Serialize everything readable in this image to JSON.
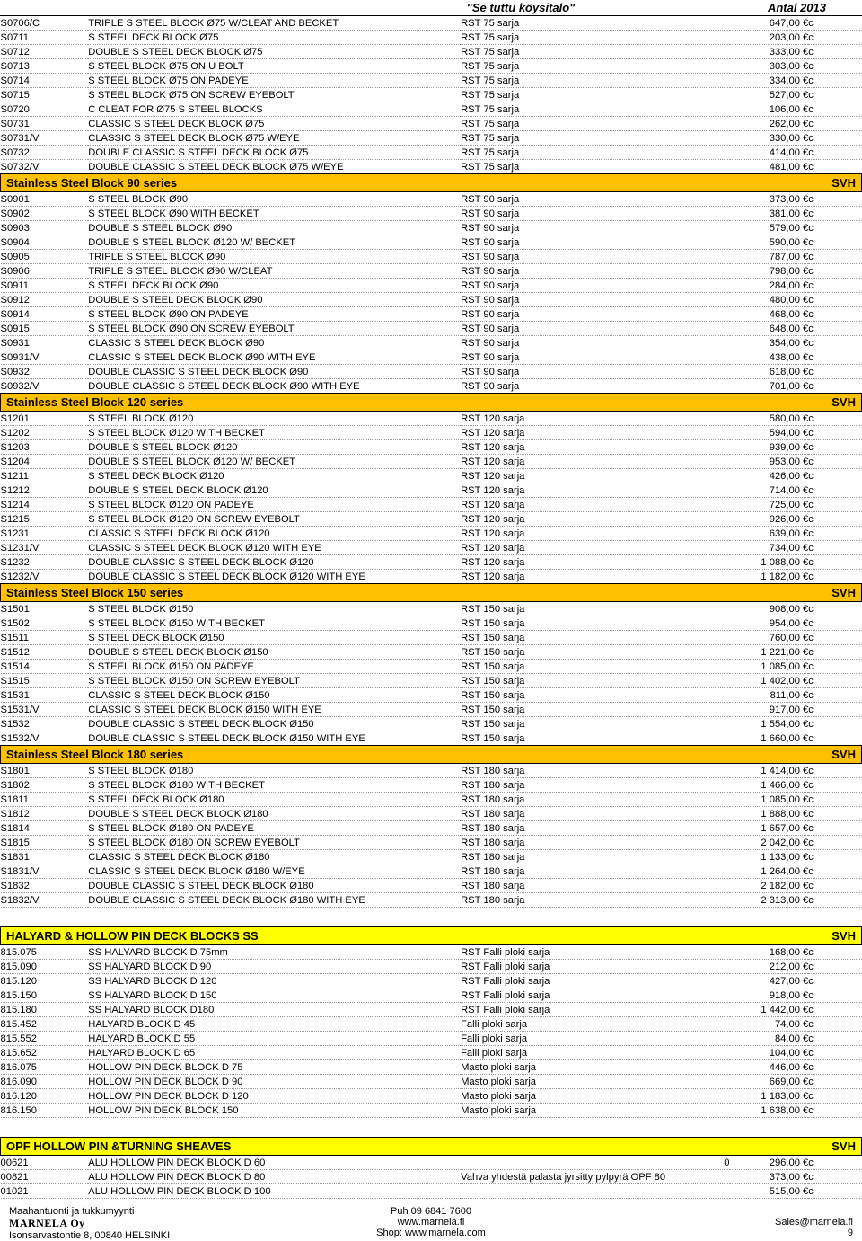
{
  "header": {
    "title": "\"Se tuttu köysitalo\"",
    "antal": "Antal  2013"
  },
  "currency": "c",
  "sections": [
    {
      "type": "rows",
      "rows": [
        {
          "code": "S0706/C",
          "desc": "TRIPLE S STEEL BLOCK Ø75 W/CLEAT AND BECKET",
          "series": "RST 75 sarja",
          "qty": "",
          "price": "647,00 €"
        },
        {
          "code": "S0711",
          "desc": "S STEEL DECK BLOCK Ø75",
          "series": "RST 75 sarja",
          "qty": "",
          "price": "203,00 €"
        },
        {
          "code": "S0712",
          "desc": "DOUBLE S STEEL DECK BLOCK Ø75",
          "series": "RST 75 sarja",
          "qty": "",
          "price": "333,00 €"
        },
        {
          "code": "S0713",
          "desc": "S STEEL BLOCK Ø75 ON U BOLT",
          "series": "RST 75 sarja",
          "qty": "",
          "price": "303,00 €"
        },
        {
          "code": "S0714",
          "desc": "S STEEL BLOCK Ø75 ON PADEYE",
          "series": "RST 75 sarja",
          "qty": "",
          "price": "334,00 €"
        },
        {
          "code": "S0715",
          "desc": "S STEEL BLOCK Ø75 ON SCREW EYEBOLT",
          "series": "RST 75 sarja",
          "qty": "",
          "price": "527,00 €"
        },
        {
          "code": "S0720",
          "desc": "C CLEAT FOR  Ø75 S STEEL BLOCKS",
          "series": "RST 75 sarja",
          "qty": "",
          "price": "106,00 €"
        },
        {
          "code": "S0731",
          "desc": "CLASSIC S STEEL DECK BLOCK Ø75",
          "series": "RST 75 sarja",
          "qty": "",
          "price": "262,00 €"
        },
        {
          "code": "S0731/V",
          "desc": "CLASSIC S STEEL DECK BLOCK Ø75 W/EYE",
          "series": "RST 75 sarja",
          "qty": "",
          "price": "330,00 €"
        },
        {
          "code": "S0732",
          "desc": "DOUBLE CLASSIC S STEEL DECK BLOCK Ø75",
          "series": "RST 75 sarja",
          "qty": "",
          "price": "414,00 €"
        },
        {
          "code": "S0732/V",
          "desc": "DOUBLE CLASSIC S STEEL DECK BLOCK Ø75 W/EYE",
          "series": "RST 75 sarja",
          "qty": "",
          "price": "481,00 €"
        }
      ]
    },
    {
      "type": "section",
      "color": "sec-yellow",
      "title": "Stainless Steel Block 90 series",
      "svh": "SVH"
    },
    {
      "type": "rows",
      "rows": [
        {
          "code": "S0901",
          "desc": "S STEEL BLOCK Ø90",
          "series": "RST 90 sarja",
          "qty": "",
          "price": "373,00 €"
        },
        {
          "code": "S0902",
          "desc": "S STEEL BLOCK Ø90 WITH  BECKET",
          "series": "RST 90 sarja",
          "qty": "",
          "price": "381,00 €"
        },
        {
          "code": "S0903",
          "desc": "DOUBLE S STEEL BLOCK Ø90",
          "series": "RST 90 sarja",
          "qty": "",
          "price": "579,00 €"
        },
        {
          "code": "S0904",
          "desc": "DOUBLE S STEEL BLOCK Ø120 W/ BECKET",
          "series": "RST 90 sarja",
          "qty": "",
          "price": "590,00 €"
        },
        {
          "code": "S0905",
          "desc": "TRIPLE S STEEL BLOCK Ø90",
          "series": "RST 90 sarja",
          "qty": "",
          "price": "787,00 €"
        },
        {
          "code": "S0906",
          "desc": "TRIPLE S STEEL BLOCK Ø90 W/CLEAT",
          "series": "RST 90 sarja",
          "qty": "",
          "price": "798,00 €"
        },
        {
          "code": "S0911",
          "desc": "S STEEL DECK BLOCK Ø90",
          "series": "RST 90 sarja",
          "qty": "",
          "price": "284,00 €"
        },
        {
          "code": "S0912",
          "desc": "DOUBLE S STEEL DECK BLOCK Ø90",
          "series": "RST 90 sarja",
          "qty": "",
          "price": "480,00 €"
        },
        {
          "code": "S0914",
          "desc": "S STEEL BLOCK Ø90 ON PADEYE",
          "series": "RST 90 sarja",
          "qty": "",
          "price": "468,00 €"
        },
        {
          "code": "S0915",
          "desc": "S STEEL BLOCK Ø90 ON SCREW EYEBOLT",
          "series": "RST 90 sarja",
          "qty": "",
          "price": "648,00 €"
        },
        {
          "code": "S0931",
          "desc": "CLASSIC S STEEL DECK BLOCK Ø90",
          "series": "RST 90 sarja",
          "qty": "",
          "price": "354,00 €"
        },
        {
          "code": "S0931/V",
          "desc": "CLASSIC S STEEL DECK BLOCK Ø90 WITH EYE",
          "series": "RST 90 sarja",
          "qty": "",
          "price": "438,00 €"
        },
        {
          "code": "S0932",
          "desc": "DOUBLE CLASSIC S STEEL DECK BLOCK Ø90",
          "series": "RST 90 sarja",
          "qty": "",
          "price": "618,00 €"
        },
        {
          "code": "S0932/V",
          "desc": "DOUBLE CLASSIC S STEEL DECK BLOCK Ø90 WITH EYE",
          "series": "RST 90 sarja",
          "qty": "",
          "price": "701,00 €"
        }
      ]
    },
    {
      "type": "section",
      "color": "sec-yellow",
      "title": "Stainless Steel Block 120 series",
      "svh": "SVH"
    },
    {
      "type": "rows",
      "rows": [
        {
          "code": "S1201",
          "desc": "S STEEL BLOCK Ø120",
          "series": "RST 120 sarja",
          "qty": "",
          "price": "580,00 €"
        },
        {
          "code": "S1202",
          "desc": "S STEEL BLOCK Ø120 WITH  BECKET",
          "series": "RST 120 sarja",
          "qty": "",
          "price": "594,00 €"
        },
        {
          "code": "S1203",
          "desc": "DOUBLE S STEEL BLOCK Ø120",
          "series": "RST 120 sarja",
          "qty": "",
          "price": "939,00 €"
        },
        {
          "code": "S1204",
          "desc": "DOUBLE S STEEL BLOCK Ø120 W/ BECKET",
          "series": "RST 120 sarja",
          "qty": "",
          "price": "953,00 €"
        },
        {
          "code": "S1211",
          "desc": "S STEEL DECK BLOCK Ø120",
          "series": "RST 120 sarja",
          "qty": "",
          "price": "426,00 €"
        },
        {
          "code": "S1212",
          "desc": "DOUBLE S STEEL DECK BLOCK Ø120",
          "series": "RST 120 sarja",
          "qty": "",
          "price": "714,00 €"
        },
        {
          "code": "S1214",
          "desc": "S STEEL BLOCK Ø120 ON PADEYE",
          "series": "RST 120 sarja",
          "qty": "",
          "price": "725,00 €"
        },
        {
          "code": "S1215",
          "desc": "S STEEL BLOCK Ø120 ON SCREW EYEBOLT",
          "series": "RST 120 sarja",
          "qty": "",
          "price": "926,00 €"
        },
        {
          "code": "S1231",
          "desc": "CLASSIC S STEEL DECK BLOCK Ø120",
          "series": "RST 120 sarja",
          "qty": "",
          "price": "639,00 €"
        },
        {
          "code": "S1231/V",
          "desc": "CLASSIC S STEEL DECK BLOCK Ø120 WITH EYE",
          "series": "RST 120 sarja",
          "qty": "",
          "price": "734,00 €"
        },
        {
          "code": "S1232",
          "desc": "DOUBLE CLASSIC S STEEL DECK BLOCK Ø120",
          "series": "RST 120 sarja",
          "qty": "",
          "price": "1 088,00 €"
        },
        {
          "code": "S1232/V",
          "desc": "DOUBLE CLASSIC S STEEL DECK BLOCK Ø120 WITH EYE",
          "series": "RST 120 sarja",
          "qty": "",
          "price": "1 182,00 €"
        }
      ]
    },
    {
      "type": "section",
      "color": "sec-yellow",
      "title": "Stainless Steel Block 150 series",
      "svh": "SVH"
    },
    {
      "type": "rows",
      "rows": [
        {
          "code": "S1501",
          "desc": "S STEEL BLOCK Ø150",
          "series": "RST 150 sarja",
          "qty": "",
          "price": "908,00 €"
        },
        {
          "code": "S1502",
          "desc": "S STEEL BLOCK Ø150 WITH  BECKET",
          "series": "RST 150 sarja",
          "qty": "",
          "price": "954,00 €"
        },
        {
          "code": "S1511",
          "desc": "S STEEL DECK BLOCK Ø150",
          "series": "RST 150 sarja",
          "qty": "",
          "price": "760,00 €"
        },
        {
          "code": "S1512",
          "desc": "DOUBLE S STEEL DECK BLOCK Ø150",
          "series": "RST 150 sarja",
          "qty": "",
          "price": "1 221,00 €"
        },
        {
          "code": "S1514",
          "desc": "S STEEL BLOCK Ø150 ON PADEYE",
          "series": "RST 150 sarja",
          "qty": "",
          "price": "1 085,00 €"
        },
        {
          "code": "S1515",
          "desc": "S STEEL BLOCK Ø150 ON SCREW EYEBOLT",
          "series": "RST 150 sarja",
          "qty": "",
          "price": "1 402,00 €"
        },
        {
          "code": "S1531",
          "desc": "CLASSIC S STEEL DECK BLOCK Ø150",
          "series": "RST 150 sarja",
          "qty": "",
          "price": "811,00 €"
        },
        {
          "code": "S1531/V",
          "desc": "CLASSIC S STEEL DECK BLOCK Ø150 WITH EYE",
          "series": "RST 150 sarja",
          "qty": "",
          "price": "917,00 €"
        },
        {
          "code": "S1532",
          "desc": "DOUBLE CLASSIC S STEEL DECK BLOCK Ø150",
          "series": "RST 150 sarja",
          "qty": "",
          "price": "1 554,00 €"
        },
        {
          "code": "S1532/V",
          "desc": "DOUBLE CLASSIC S STEEL DECK BLOCK Ø150 WITH EYE",
          "series": "RST 150 sarja",
          "qty": "",
          "price": "1 660,00 €"
        }
      ]
    },
    {
      "type": "section",
      "color": "sec-yellow",
      "title": "Stainless Steel Block 180 series",
      "svh": "SVH"
    },
    {
      "type": "rows",
      "rows": [
        {
          "code": "S1801",
          "desc": "S STEEL BLOCK Ø180",
          "series": "RST 180 sarja",
          "qty": "",
          "price": "1 414,00 €"
        },
        {
          "code": "S1802",
          "desc": "S STEEL BLOCK Ø180 WITH  BECKET",
          "series": "RST 180 sarja",
          "qty": "",
          "price": "1 466,00 €"
        },
        {
          "code": "S1811",
          "desc": "S STEEL DECK BLOCK Ø180",
          "series": "RST 180 sarja",
          "qty": "",
          "price": "1 085,00 €"
        },
        {
          "code": "S1812",
          "desc": "DOUBLE S STEEL DECK BLOCK Ø180",
          "series": "RST 180 sarja",
          "qty": "",
          "price": "1 888,00 €"
        },
        {
          "code": "S1814",
          "desc": "S STEEL BLOCK Ø180 ON PADEYE",
          "series": "RST 180 sarja",
          "qty": "",
          "price": "1 657,00 €"
        },
        {
          "code": "S1815",
          "desc": "S STEEL BLOCK Ø180 ON SCREW EYEBOLT",
          "series": "RST 180 sarja",
          "qty": "",
          "price": "2 042,00 €"
        },
        {
          "code": "S1831",
          "desc": "CLASSIC S STEEL DECK BLOCK Ø180",
          "series": "RST 180 sarja",
          "qty": "",
          "price": "1 133,00 €"
        },
        {
          "code": "S1831/V",
          "desc": "CLASSIC S STEEL DECK BLOCK Ø180 W/EYE",
          "series": "RST 180 sarja",
          "qty": "",
          "price": "1 264,00 €"
        },
        {
          "code": "S1832",
          "desc": "DOUBLE CLASSIC S STEEL DECK BLOCK Ø180",
          "series": "RST 180 sarja",
          "qty": "",
          "price": "2 182,00 €"
        },
        {
          "code": "S1832/V",
          "desc": "DOUBLE CLASSIC S STEEL DECK BLOCK Ø180 WITH EYE",
          "series": "RST 180 sarja",
          "qty": "",
          "price": "2 313,00 €"
        }
      ]
    },
    {
      "type": "spacer"
    },
    {
      "type": "section",
      "color": "sec-ylw2",
      "title": "HALYARD & HOLLOW PIN DECK BLOCKS SS",
      "svh": "SVH"
    },
    {
      "type": "rows",
      "rows": [
        {
          "code": "815.075",
          "desc": "SS HALYARD BLOCK D 75mm",
          "series": "RST Falli ploki sarja",
          "qty": "",
          "price": "168,00 €"
        },
        {
          "code": "815.090",
          "desc": "SS HALYARD BLOCK D 90",
          "series": "RST Falli ploki sarja",
          "qty": "",
          "price": "212,00 €"
        },
        {
          "code": "815.120",
          "desc": "SS HALYARD  BLOCK D 120",
          "series": "RST Falli ploki sarja",
          "qty": "",
          "price": "427,00 €"
        },
        {
          "code": "815.150",
          "desc": "SS HALYARD  BLOCK D 150",
          "series": "RST Falli ploki sarja",
          "qty": "",
          "price": "918,00 €"
        },
        {
          "code": "815.180",
          "desc": "SS HALYARD BLOCK D180",
          "series": "RST Falli ploki sarja",
          "qty": "",
          "price": "1 442,00 €"
        },
        {
          "code": "815.452",
          "desc": "HALYARD BLOCK D 45",
          "series": "Falli ploki sarja",
          "qty": "",
          "price": "74,00 €"
        },
        {
          "code": "815.552",
          "desc": "HALYARD BLOCK D 55",
          "series": "Falli ploki sarja",
          "qty": "",
          "price": "84,00 €"
        },
        {
          "code": "815.652",
          "desc": "HALYARD BLOCK D 65",
          "series": "Falli ploki sarja",
          "qty": "",
          "price": "104,00 €"
        },
        {
          "code": "816.075",
          "desc": "HOLLOW PIN DECK BLOCK D 75",
          "series": "Masto ploki sarja",
          "qty": "",
          "price": "446,00 €"
        },
        {
          "code": "816.090",
          "desc": "HOLLOW PIN DECK BLOCK D 90",
          "series": "Masto ploki sarja",
          "qty": "",
          "price": "669,00 €"
        },
        {
          "code": "816.120",
          "desc": "HOLLOW PIN DECK BLOCK D 120",
          "series": "Masto ploki sarja",
          "qty": "",
          "price": "1 183,00 €"
        },
        {
          "code": "816.150",
          "desc": "HOLLOW PIN DECK BLOCK 150",
          "series": "Masto ploki sarja",
          "qty": "",
          "price": "1 638,00 €"
        }
      ]
    },
    {
      "type": "spacer"
    },
    {
      "type": "section",
      "color": "sec-ylw2",
      "title": "OPF HOLLOW PIN &TURNING SHEAVES",
      "svh": "SVH"
    },
    {
      "type": "rows",
      "rows": [
        {
          "code": "00621",
          "desc": "ALU HOLLOW PIN DECK BLOCK D 60",
          "series": "",
          "qty": "0",
          "price": "296,00 €"
        },
        {
          "code": "00821",
          "desc": "ALU HOLLOW PIN DECK BLOCK D 80",
          "series": "Vahva yhdestä palasta jyrsitty pylpyrä OPF 80",
          "qty": "",
          "price": "373,00 €"
        },
        {
          "code": "01021",
          "desc": "ALU HOLLOW PIN DECK BLOCK D 100",
          "series": "",
          "qty": "",
          "price": "515,00 €"
        }
      ]
    }
  ],
  "footer": {
    "left1": "Maahantuonti ja tukkumyynti",
    "brand": "MARNELA Oy",
    "left3": "Isonsarvastontie 8, 00840 HELSINKI",
    "center1": "Puh 09 6841 7600",
    "center2": "www.marnela.fi",
    "center3": "Shop: www.marnela.com",
    "right1": "Sales@marnela.fi",
    "right2": "9"
  }
}
